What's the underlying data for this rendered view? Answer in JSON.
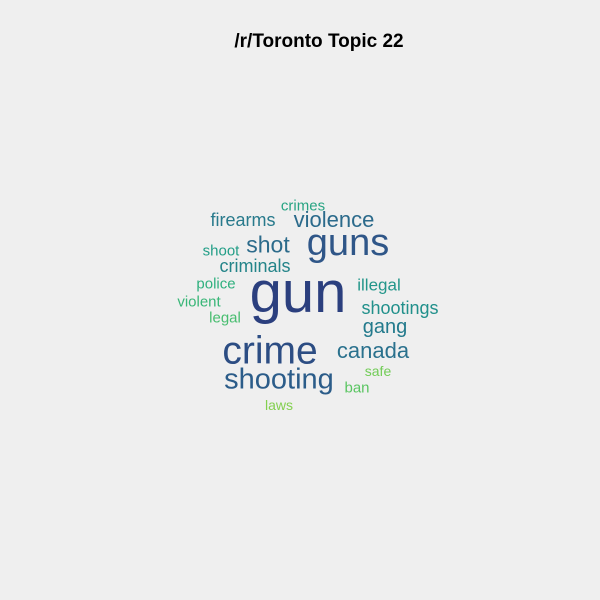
{
  "title": "/r/Toronto Topic 22",
  "words": [
    {
      "text": "gun",
      "color": "#2b3f7e"
    },
    {
      "text": "crime",
      "color": "#2c4d83"
    },
    {
      "text": "guns",
      "color": "#2f5688"
    },
    {
      "text": "shooting",
      "color": "#2b5c89"
    },
    {
      "text": "violence",
      "color": "#2b6a8b"
    },
    {
      "text": "canada",
      "color": "#2a718d"
    },
    {
      "text": "shot",
      "color": "#2c6b8b"
    },
    {
      "text": "gang",
      "color": "#237a8c"
    },
    {
      "text": "firearms",
      "color": "#287a8c"
    },
    {
      "text": "criminals",
      "color": "#248489"
    },
    {
      "text": "shootings",
      "color": "#21908b"
    },
    {
      "text": "illegal",
      "color": "#23968a"
    },
    {
      "text": "shoot",
      "color": "#229e87"
    },
    {
      "text": "crimes",
      "color": "#28a483"
    },
    {
      "text": "police",
      "color": "#2fb07e"
    },
    {
      "text": "violent",
      "color": "#38b677"
    },
    {
      "text": "legal",
      "color": "#47bd6f"
    },
    {
      "text": "ban",
      "color": "#5ac562"
    },
    {
      "text": "safe",
      "color": "#72cc57"
    },
    {
      "text": "laws",
      "color": "#83d04f"
    }
  ]
}
